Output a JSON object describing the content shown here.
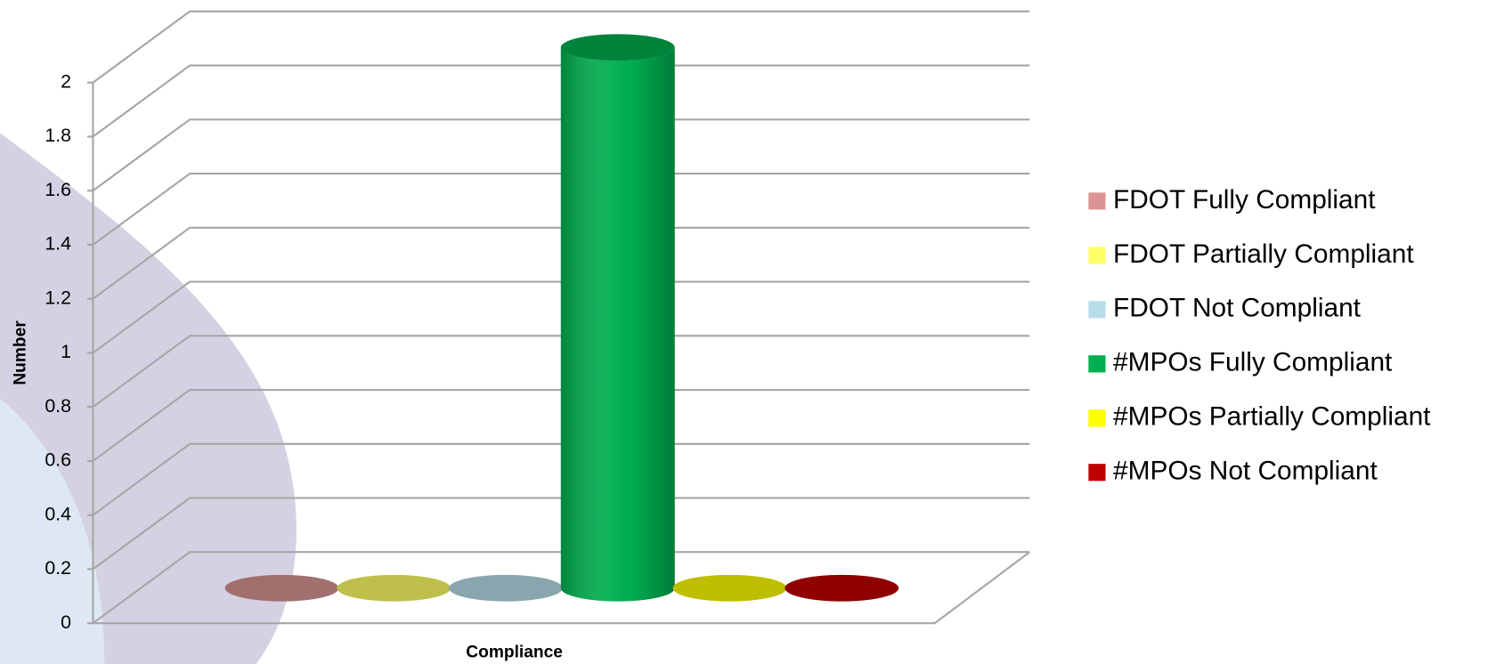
{
  "chart_data": {
    "type": "bar3d",
    "y_label": "Number",
    "x_label": "Compliance",
    "ylim": [
      0,
      2
    ],
    "yticks": [
      0,
      0.2,
      0.4,
      0.6,
      0.8,
      1,
      1.2,
      1.4,
      1.6,
      1.8,
      2
    ],
    "grid": true,
    "legend": "right",
    "series": [
      {
        "name": "FDOT Fully Compliant",
        "color": "#d99594",
        "values": [
          0
        ]
      },
      {
        "name": "FDOT Partially Compliant",
        "color": "#ffff66",
        "values": [
          0
        ]
      },
      {
        "name": "FDOT Not Compliant",
        "color": "#b7dde8",
        "values": [
          0
        ]
      },
      {
        "name": "#MPOs Fully Compliant",
        "color": "#00b050",
        "values": [
          2
        ]
      },
      {
        "name": "#MPOs Partially Compliant",
        "color": "#ffff00",
        "values": [
          0
        ]
      },
      {
        "name": "#MPOs Not Compliant",
        "color": "#c00000",
        "values": [
          0
        ]
      }
    ]
  }
}
